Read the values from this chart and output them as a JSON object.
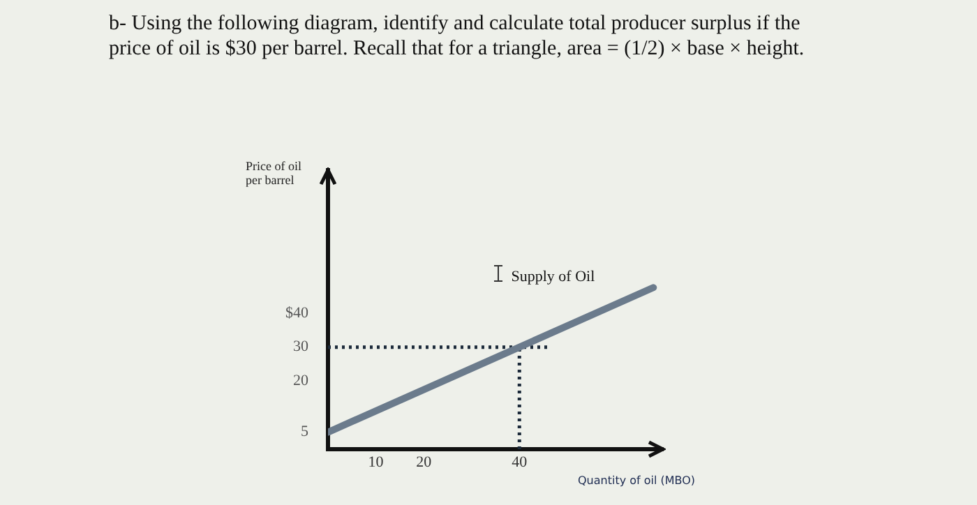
{
  "chart_data": {
    "type": "line",
    "title": "b- Using the following diagram, identify and calculate total producer surplus if the price of oil is $30 per barrel. Recall that for a triangle, area = (1/2) × base × height.",
    "xlabel": "Quantity of oil (MBO)",
    "ylabel": "Price of oil per barrel",
    "xlim": [
      0,
      70
    ],
    "xticks": [
      10,
      20,
      40
    ],
    "ylim": [
      0,
      82
    ],
    "yticks": [
      5,
      20,
      30,
      {
        "value": 40,
        "label": "$40"
      }
    ],
    "grid": false,
    "marker": "none",
    "series": [
      {
        "name": "Supply of Oil",
        "color": "#6b7b8c",
        "x": [
          0,
          68
        ],
        "values": [
          5,
          47.5
        ]
      },
      {
        "color": "#1c2a3a",
        "line_style": "dotted",
        "x": [
          0,
          46
        ],
        "values": [
          30,
          30
        ]
      },
      {
        "color": "#1c2a3a",
        "line_style": "dotted",
        "x": [
          40,
          40
        ],
        "values": [
          0,
          30
        ]
      }
    ]
  }
}
